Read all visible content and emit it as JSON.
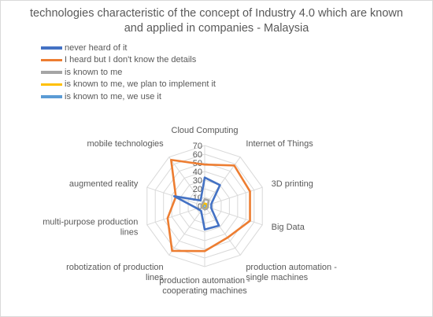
{
  "chart_data": {
    "type": "radar",
    "title_line1": "technologies characteristic of the concept of Industry 4.0 which are known",
    "title_line2": "and applied in companies - Malaysia",
    "categories": [
      [
        "Cloud Computing"
      ],
      [
        "Internet of Things"
      ],
      [
        "3D printing"
      ],
      [
        "Big Data"
      ],
      [
        "production automation -",
        "single machines"
      ],
      [
        "production automation -",
        "cooperating machines"
      ],
      [
        "robotization of production",
        "lines"
      ],
      [
        "multi-purpose production",
        "lines"
      ],
      [
        "augmented reality"
      ],
      [
        "mobile technologies"
      ]
    ],
    "rlim": [
      0,
      70
    ],
    "ticks": [
      "0",
      "10",
      "20",
      "30",
      "40",
      "50",
      "60",
      "70"
    ],
    "series": [
      {
        "name": "never heard of it",
        "color": "#4472C4",
        "values": [
          33,
          30,
          8,
          8,
          28,
          27,
          7,
          9,
          37,
          8
        ]
      },
      {
        "name": "I heard but I don't know the details",
        "color": "#ED7D31",
        "values": [
          48,
          58,
          55,
          55,
          45,
          52,
          64,
          45,
          35,
          66
        ]
      },
      {
        "name": "is known to me",
        "color": "#A5A5A5",
        "values": [
          8,
          8,
          4,
          4,
          4,
          4,
          3,
          4,
          4,
          4
        ]
      },
      {
        "name": "is known to me, we plan to implement it",
        "color": "#FFC000",
        "values": [
          3,
          3,
          3,
          3,
          3,
          3,
          3,
          3,
          3,
          3
        ]
      },
      {
        "name": "is known to me, we use it",
        "color": "#5B9BD5",
        "values": [
          2,
          2,
          2,
          2,
          2,
          2,
          2,
          2,
          2,
          2
        ]
      }
    ],
    "grid": true,
    "legend_position": "top-left"
  }
}
